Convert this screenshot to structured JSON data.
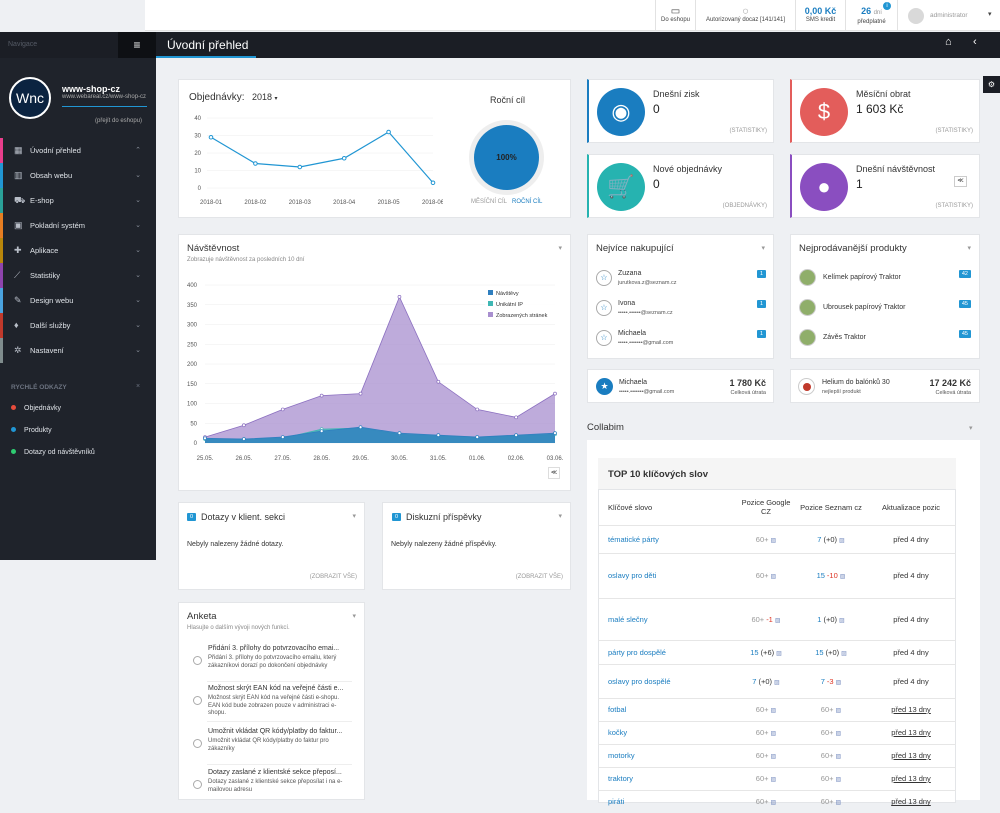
{
  "topbar": {
    "eshop": "Do eshopu",
    "authorized": "Autorizovaný docaz [141/141]",
    "sms_value": "0,00 Kč",
    "sms_label": "SMS kredit",
    "days_value": "26",
    "days_unit": "dní",
    "days_label": "předplatné",
    "days_badge": "i",
    "user": "administrator"
  },
  "nav": {
    "label": "Navigace",
    "page_title": "Úvodní přehled"
  },
  "shop": {
    "logo": "Wnc",
    "name": "www-shop-cz",
    "url": "www.webareal.cz/www-shop-cz",
    "link": "(přejít do eshopu)"
  },
  "menu": [
    {
      "label": "Úvodní přehled",
      "icon": "grid-icon",
      "color": "#e83e8c",
      "active": true
    },
    {
      "label": "Obsah webu",
      "icon": "columns-icon",
      "color": "#2196d3"
    },
    {
      "label": "E-shop",
      "icon": "cart-icon",
      "color": "#2aa198"
    },
    {
      "label": "Pokladní systém",
      "icon": "register-icon",
      "color": "#e67e22"
    },
    {
      "label": "Aplikace",
      "icon": "puzzle-icon",
      "color": "#b8860b"
    },
    {
      "label": "Statistiky",
      "icon": "chart-icon",
      "color": "#8e44ad"
    },
    {
      "label": "Design webu",
      "icon": "brush-icon",
      "color": "#4aa3df"
    },
    {
      "label": "Další služby",
      "icon": "bulb-icon",
      "color": "#c0392b"
    },
    {
      "label": "Nastavení",
      "icon": "gears-icon",
      "color": "#7f8c8d"
    }
  ],
  "quick": {
    "title": "RYCHLÉ ODKAZY",
    "close": "×",
    "items": [
      {
        "label": "Objednávky",
        "color": "#e74c3c"
      },
      {
        "label": "Produkty",
        "color": "#2196d3"
      },
      {
        "label": "Dotazy od návštěvníků",
        "color": "#2ecc71"
      }
    ]
  },
  "orders_panel": {
    "label": "Objednávky:",
    "year": "2018",
    "goal_title": "Roční cíl",
    "goal_value": "100%",
    "tab_month": "MĚSÍČNÍ CÍL",
    "tab_year": "ROČNÍ CÍL"
  },
  "orders_chart": {
    "chart_data": {
      "type": "line",
      "categories": [
        "2018-01",
        "2018-02",
        "2018-03",
        "2018-04",
        "2018-05",
        "2018-06"
      ],
      "values": [
        29,
        14,
        12,
        17,
        32,
        3
      ],
      "ylim": [
        0,
        40
      ],
      "yticks": [
        "40",
        "30",
        "20",
        "10",
        "0"
      ],
      "color": "#2196d3"
    }
  },
  "stats": [
    {
      "label": "Dnešní zisk",
      "value": "0",
      "footer": "(STATISTIKY)",
      "color": "#1a7dc0",
      "icon": "lifebuoy-icon",
      "glyph": "◉"
    },
    {
      "label": "Měsíční obrat",
      "value": "1 603 Kč",
      "footer": "(STATISTIKY)",
      "color": "#e35d5b",
      "icon": "dollar-icon",
      "glyph": "$"
    },
    {
      "label": "Nové objednávky",
      "value": "0",
      "footer": "(OBJEDNÁVKY)",
      "color": "#26b3b0",
      "icon": "cart-icon",
      "glyph": "🛒"
    },
    {
      "label": "Dnešní návštěvnost",
      "value": "1",
      "footer": "(STATISTIKY)",
      "color": "#8a4ec0",
      "icon": "user-icon",
      "glyph": "●"
    }
  ],
  "visits": {
    "title": "Návštěvnost",
    "subtitle": "Zobrazuje návštěvnost za posledních 10 dní",
    "chart_data": {
      "type": "area",
      "categories": [
        "25.05.",
        "26.05.",
        "27.05.",
        "28.05.",
        "29.05.",
        "30.05.",
        "31.05.",
        "01.06.",
        "02.06.",
        "03.06."
      ],
      "ylim": [
        0,
        400
      ],
      "yticks": [
        "400",
        "350",
        "300",
        "250",
        "200",
        "150",
        "100",
        "50",
        "0"
      ],
      "series": [
        {
          "name": "Návštěvy",
          "values": [
            12,
            10,
            15,
            30,
            40,
            25,
            20,
            15,
            20,
            25
          ],
          "color": "#2f7fbf"
        },
        {
          "name": "Unikátní IP",
          "values": [
            10,
            10,
            12,
            35,
            38,
            22,
            18,
            15,
            18,
            22
          ],
          "color": "#3fb7b4"
        },
        {
          "name": "Zobrazených stránek",
          "values": [
            15,
            45,
            85,
            120,
            125,
            370,
            155,
            85,
            65,
            125
          ],
          "color": "#a88fcf"
        }
      ]
    }
  },
  "buyers": {
    "title": "Nejvíce nakupující",
    "items": [
      {
        "name": "Zuzana",
        "email": "jurutkova.z@seznam.cz",
        "count": "1"
      },
      {
        "name": "Ivona",
        "email": "•••••.••••••@seznam.cz",
        "count": "1"
      },
      {
        "name": "Michaela",
        "email": "•••••.•••••••@gmail.com",
        "count": "1"
      }
    ],
    "top": {
      "name": "Michaela",
      "email": "•••••.•••••••@gmail.com",
      "value": "1 780 Kč",
      "label": "Celková útrata"
    }
  },
  "products": {
    "title": "Nejprodávanější produkty",
    "items": [
      {
        "name": "Kelímek papírový Traktor",
        "count": "42"
      },
      {
        "name": "Ubrousek papírový Traktor",
        "count": "45"
      },
      {
        "name": "Závěs Traktor",
        "count": "45"
      }
    ],
    "top": {
      "name": "Helium do balónků 30",
      "sub": "nejlepší produkt",
      "value": "17 242 Kč",
      "label": "Celková útrata"
    }
  },
  "client_q": {
    "count": "0",
    "title": "Dotazy v klient. sekci",
    "text": "Nebyly nalezeny žádné dotazy.",
    "link": "(ZOBRAZIT VŠE)"
  },
  "discussion": {
    "count": "0",
    "title": "Diskuzní příspěvky",
    "text": "Nebyly nalezeny žádné příspěvky.",
    "link": "(ZOBRAZIT VŠE)"
  },
  "poll": {
    "title": "Anketa",
    "subtitle": "Hlasujte o dalším vývoji nových funkcí.",
    "items": [
      {
        "title": "Přidání 3. přílohy do potvrzovacího emai...",
        "desc": "Přidání 3. přílohy do potvrzovacího emailu, který zákazníkovi dorazí po dokončení objednávky"
      },
      {
        "title": "Možnost skrýt EAN kód na veřejné části e...",
        "desc": "Možnost skrýt EAN kód na veřejné části e-shopu. EAN kód bude zobrazen pouze v administraci e-shopu."
      },
      {
        "title": "Umožnit vkládat QR kódy/platby do faktur...",
        "desc": "Umožnit vkládat QR kódy/platby do faktur pro zákazníky"
      },
      {
        "title": "Dotazy zaslané z klientské sekce přeposí...",
        "desc": "Dotazy zaslané z klientské sekce přeposílat i na e-mailovou adresu"
      }
    ]
  },
  "collabim": {
    "title": "Collabim",
    "table_title": "TOP 10 klíčových slov",
    "headers": {
      "keyword": "Klíčové slovo",
      "google": "Pozice Google CZ",
      "seznam": "Pozice Seznam cz",
      "update": "Aktualizace pozic"
    },
    "rows": [
      {
        "kw": "tématické párty",
        "g": "60+",
        "g_change": "",
        "s": "7",
        "s_change": "(+0)",
        "upd": "před 4 dny"
      },
      {
        "kw": "oslavy pro děti",
        "g": "60+",
        "g_change": "",
        "s": "15",
        "s_change": "-10",
        "upd": "před 4 dny"
      },
      {
        "kw": "malé slečny",
        "g": "60+",
        "g_change": "-1",
        "s": "1",
        "s_change": "(+0)",
        "upd": "před 4 dny"
      },
      {
        "kw": "párty pro dospělé",
        "g": "15",
        "g_change": "(+6)",
        "s": "15",
        "s_change": "(+0)",
        "upd": "před 4 dny"
      },
      {
        "kw": "oslavy pro dospělé",
        "g": "7",
        "g_change": "(+0)",
        "s": "7",
        "s_change": "-3",
        "upd": "před 4 dny"
      },
      {
        "kw": "fotbal",
        "g": "60+",
        "g_change": "",
        "s": "60+",
        "s_change": "",
        "upd": "před 13 dny"
      },
      {
        "kw": "kočky",
        "g": "60+",
        "g_change": "",
        "s": "60+",
        "s_change": "",
        "upd": "před 13 dny"
      },
      {
        "kw": "motorky",
        "g": "60+",
        "g_change": "",
        "s": "60+",
        "s_change": "",
        "upd": "před 13 dny"
      },
      {
        "kw": "traktory",
        "g": "60+",
        "g_change": "",
        "s": "60+",
        "s_change": "",
        "upd": "před 13 dny"
      },
      {
        "kw": "piráti",
        "g": "60+",
        "g_change": "",
        "s": "60+",
        "s_change": "",
        "upd": "před 13 dny"
      }
    ]
  }
}
